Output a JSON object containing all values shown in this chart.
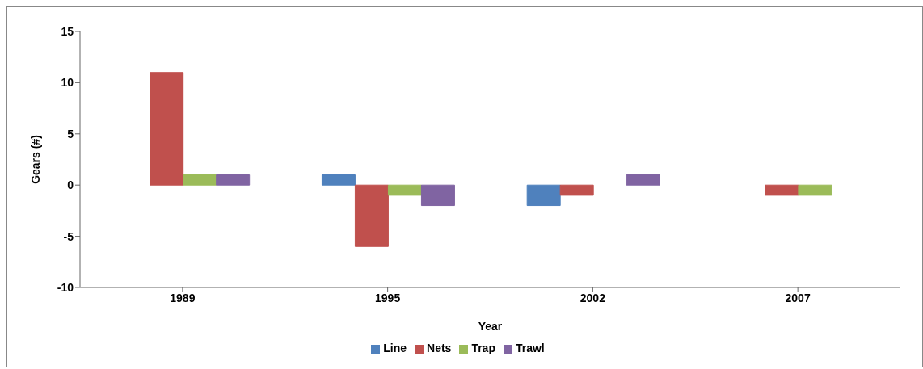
{
  "chart_data": {
    "type": "bar",
    "xlabel": "Year",
    "ylabel": "Gears (#)",
    "categories": [
      "1989",
      "1995",
      "2002",
      "2007"
    ],
    "series": [
      {
        "name": "Line",
        "color": "#4f81bd",
        "values": [
          0,
          1,
          -2,
          0
        ]
      },
      {
        "name": "Nets",
        "color": "#c0504d",
        "values": [
          11,
          -6,
          -1,
          -1
        ]
      },
      {
        "name": "Trap",
        "color": "#9bbb59",
        "values": [
          1,
          -1,
          0,
          -1
        ]
      },
      {
        "name": "Trawl",
        "color": "#8064a2",
        "values": [
          1,
          -2,
          1,
          0
        ]
      }
    ],
    "ylim": [
      -10,
      15
    ],
    "yticks": [
      -10,
      -5,
      0,
      5,
      10,
      15
    ],
    "grid": false,
    "legend": "bottom"
  }
}
